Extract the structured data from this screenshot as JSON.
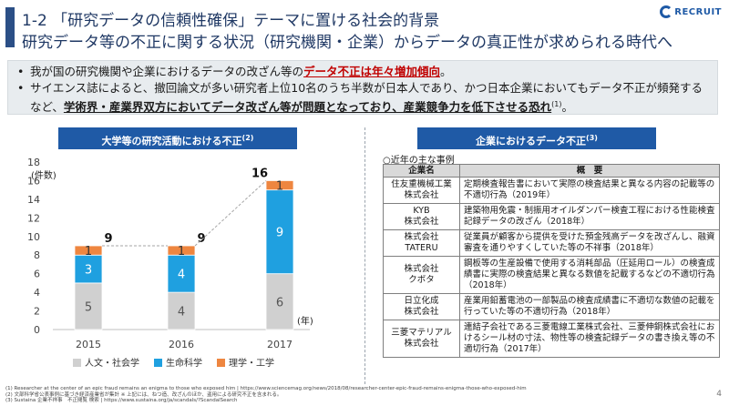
{
  "title": {
    "line1": "1-2 「研究データの信頼性確保」テーマに置ける社会的背景",
    "line2": "研究データ等の不正に関する状況（研究機関・企業）からデータの真正性が求められる時代へ"
  },
  "logo": {
    "text": "RECRUIT",
    "icon": "recruit-logo-icon"
  },
  "summary": {
    "bullet1_pre": "我が国の研究機関や企業におけるデータの改ざん等の",
    "bullet1_em": "データ不正は年々増加傾向",
    "bullet1_post": "。",
    "bullet2_pre": "サイエンス誌によると、撤回論文が多い研究者上位10名のうち半数が日本人であり、かつ日本企業においてもデータ不正が頻発するなど、",
    "bullet2_em": "学術界・産業界双方においてデータ改ざん等が問題となっており、産業競争力を低下させる恐れ",
    "bullet2_sup": "(1)",
    "bullet2_post": "。"
  },
  "chart_header": {
    "label": "大学等の研究活動における不正",
    "sup": "(2)"
  },
  "chart_data": {
    "type": "bar",
    "stacked": true,
    "categories": [
      "2015",
      "2016",
      "2017"
    ],
    "series": [
      {
        "name": "人文・社会学",
        "values": [
          5,
          4,
          6
        ],
        "color": "#d0d0d0"
      },
      {
        "name": "生命科学",
        "values": [
          3,
          4,
          9
        ],
        "color": "#1fa0e0"
      },
      {
        "name": "理学・工学",
        "values": [
          1,
          1,
          1
        ],
        "color": "#ee8640"
      }
    ],
    "totals": [
      9,
      9,
      16
    ],
    "ylabel": "(件数)",
    "xlabel": "(年)",
    "ylim": [
      0,
      18
    ],
    "yticks": [
      0,
      2,
      4,
      6,
      8,
      10,
      12,
      14,
      16,
      18
    ],
    "grid": false,
    "legend": "bottom"
  },
  "enterprise": {
    "header": "企業におけるデータ不正",
    "header_sup": "(3)",
    "subtitle": "○近年の主な事例",
    "col_company": "企業名",
    "col_summary": "概　要",
    "rows": [
      {
        "company": "住友重機械工業\n株式会社",
        "summary": "定期検査報告書において実際の検査結果と異なる内容の記載等の不適切行為（2019年）"
      },
      {
        "company": "KYB\n株式会社",
        "summary": "建築物用免震・制振用オイルダンパー検査工程における性能検査記録データの改ざん（2018年）"
      },
      {
        "company": "株式会社\nTATERU",
        "summary": "従業員が顧客から提供を受けた預金残高データを改ざんし、融資審査を通りやすくしていた等の不祥事（2018年）"
      },
      {
        "company": "株式会社\nクボタ",
        "summary": "鋼板等の生産設備で使用する消耗部品（圧延用ロール）の検査成績書に実際の検査結果と異なる数値を記載するなどの不適切行為（2018年）"
      },
      {
        "company": "日立化成\n株式会社",
        "summary": "産業用鉛蓄電池の一部製品の検査成績書に不適切な数値の記載を行っていた等の不適切行為（2018年）"
      },
      {
        "company": "三菱マテリアル\n株式会社",
        "summary": "連結子会社である三菱電線工業株式会社、三菱伸銅株式会社におけるシール材の寸法、物性等の検査記録データの書き換え等の不適切行為（2017年）"
      }
    ]
  },
  "footnotes": [
    "(1) Researcher at the center of an epic fraud remains an enigma to those who exposed him | https://www.sciencemag.org/news/2018/08/researcher-center-epic-fraud-remains-enigma-those-who-exposed-him",
    "(2) 文部科学省公表事例に基づき経済産業省が集計 ※ 上記には、ねつ造、改ざんのほか、盗用による研究不正を含まれる。",
    "(3) Sustaina 企業不祥事　不正閲覧 検索 | https://www.sustaina.org/ja/scandals/?ScandalSearch"
  ],
  "page_number": "4"
}
